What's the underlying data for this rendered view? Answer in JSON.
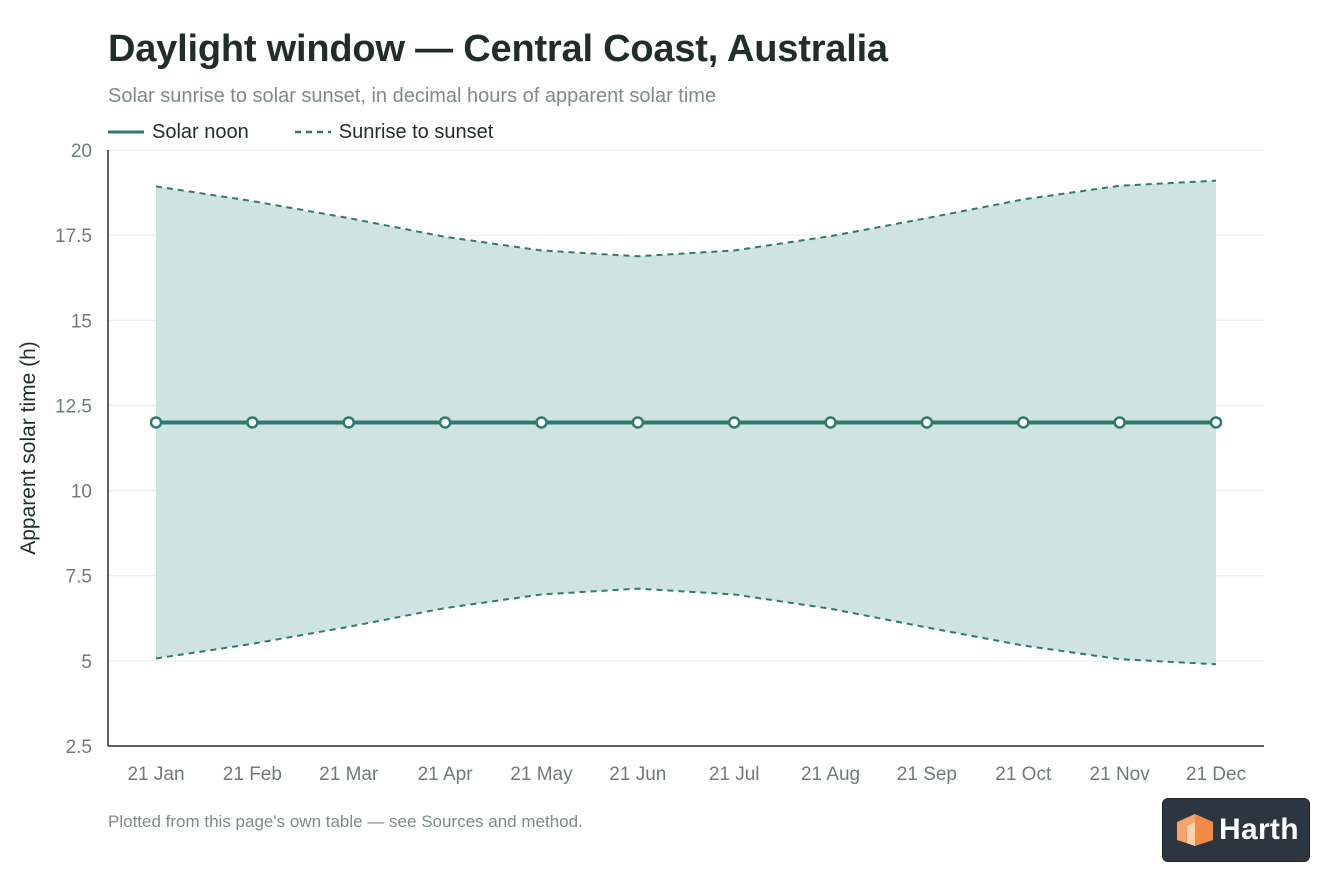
{
  "title": "Daylight window — Central Coast, Australia",
  "subtitle": "Solar sunrise to solar sunset, in decimal hours of apparent solar time",
  "footnote": "Plotted from this page's own table — see Sources and method.",
  "brand": "Harth",
  "legend": {
    "noon_label": "Solar noon",
    "window_label": "Sunrise to sunset"
  },
  "colors": {
    "accent": "#2e7a6e",
    "band_fill": "#cfe4e0",
    "axis": "#2b2b2b",
    "grid": "#e8ecec",
    "tick_text": "#6f7b7a",
    "badge_bg": "#2b3640",
    "logo_orange": "#f5a36a"
  },
  "chart_data": {
    "type": "area",
    "ylabel": "Apparent solar time (h)",
    "ylim": [
      2.5,
      20
    ],
    "yticks": [
      "2.5",
      "5",
      "7.5",
      "10",
      "12.5",
      "15",
      "17.5",
      "20"
    ],
    "grid": true,
    "legend_position": "top-left",
    "categories": [
      "21 Jan",
      "21 Feb",
      "21 Mar",
      "21 Apr",
      "21 May",
      "21 Jun",
      "21 Jul",
      "21 Aug",
      "21 Sep",
      "21 Oct",
      "21 Nov",
      "21 Dec"
    ],
    "series": [
      {
        "name": "Solar noon",
        "values": [
          12,
          12,
          12,
          12,
          12,
          12,
          12,
          12,
          12,
          12,
          12,
          12
        ]
      },
      {
        "name": "Sunrise to sunset",
        "sunrise": [
          5.07,
          5.5,
          6.0,
          6.55,
          6.95,
          7.12,
          6.95,
          6.53,
          5.98,
          5.45,
          5.05,
          4.9
        ],
        "sunset": [
          18.93,
          18.5,
          18.0,
          17.45,
          17.05,
          16.88,
          17.05,
          17.47,
          18.0,
          18.55,
          18.95,
          19.1
        ]
      }
    ]
  }
}
